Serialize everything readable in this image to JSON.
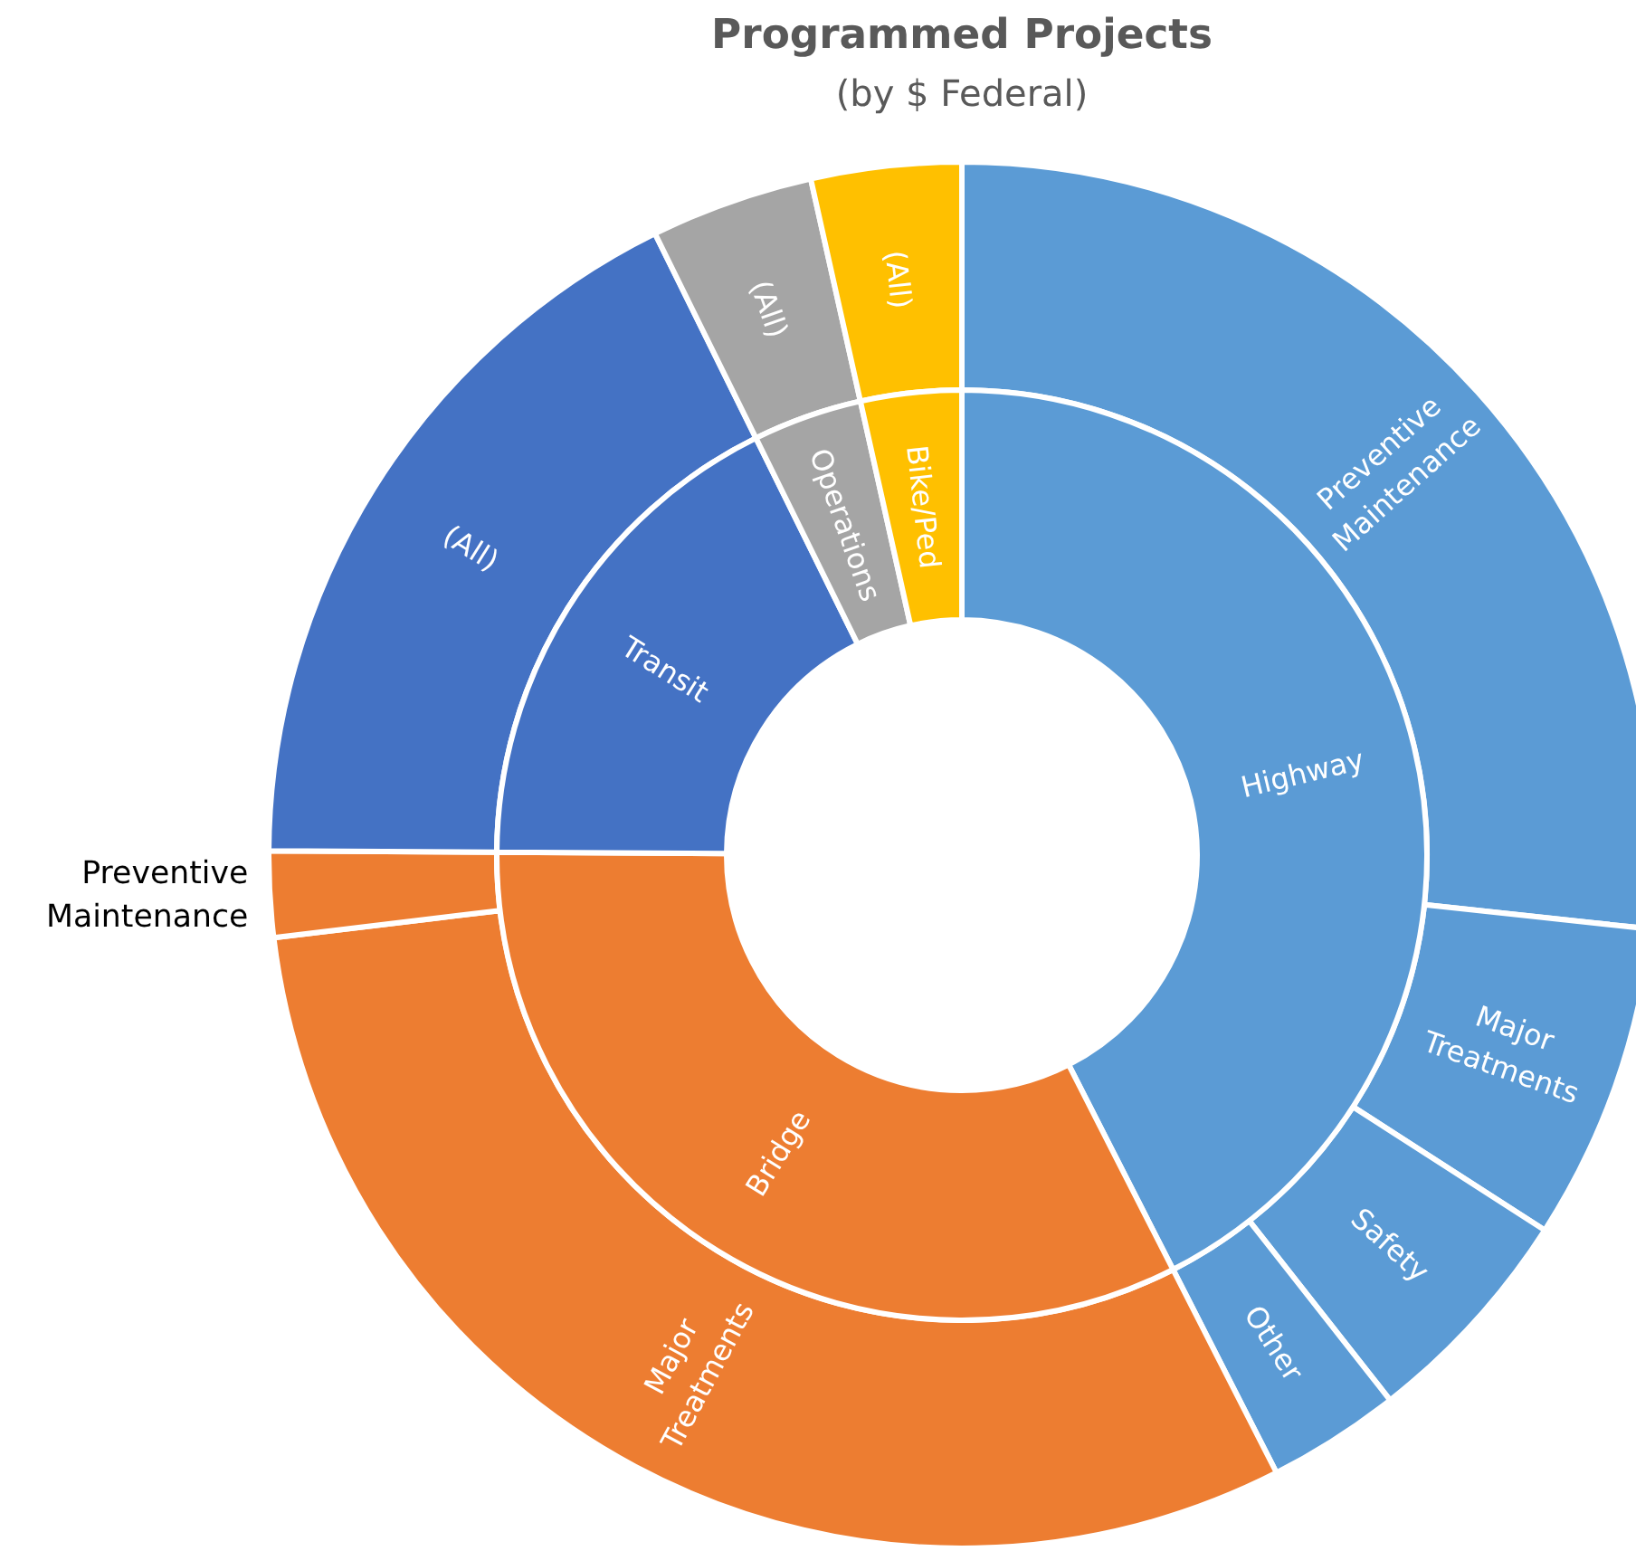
{
  "chart_data": {
    "type": "donut",
    "title": "Programmed Projects",
    "subtitle": "(by $ Federal)",
    "categories": [
      "Preventive Maintenance",
      "Major Treatments",
      "Safety",
      "Other",
      "Major Treatments",
      "Preventive Maintenance",
      "(All)",
      "(All)",
      "(All)"
    ],
    "annotations": [
      "Highway",
      "Bridge",
      "Transit",
      "Operations",
      "Bike/Ped"
    ],
    "series": [
      {
        "values": [
          26.7,
          7.4,
          5.3,
          3.1,
          30.6,
          2.0,
          17.6,
          3.8,
          3.5
        ],
        "colors": [
          "#5b9bd5",
          "#5b9bd5",
          "#5b9bd5",
          "#5b9bd5",
          "#ed7d31",
          "#ed7d31",
          "#4472c4",
          "#a5a5a5",
          "#ffc000"
        ]
      },
      {
        "values": [
          42.5,
          null,
          null,
          null,
          32.6,
          null,
          17.6,
          3.8,
          3.5
        ],
        "colors": [
          "#5b9bd5",
          null,
          null,
          null,
          "#ed7d31",
          null,
          "#4472c4",
          "#a5a5a5",
          "#ffc000"
        ]
      }
    ]
  }
}
